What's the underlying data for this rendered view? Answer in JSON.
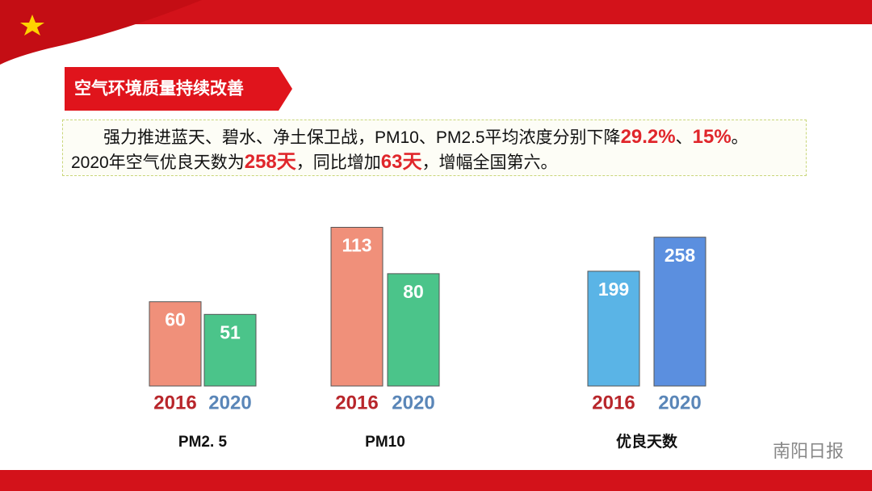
{
  "header": {
    "title": "空气环境质量持续改善"
  },
  "paragraph": {
    "lines": [
      [
        {
          "text": "强力推进蓝天、碧水、净土保卫战，PM10、PM2.5平均浓度分别下降",
          "style": "plain"
        },
        {
          "text": "29.2%",
          "style": "emphasis"
        },
        {
          "text": "、",
          "style": "plain"
        },
        {
          "text": "15%",
          "style": "emphasis"
        },
        {
          "text": "。",
          "style": "plain"
        }
      ],
      [
        {
          "text": "2020年空气优良天数为",
          "style": "plain"
        },
        {
          "text": "258天",
          "style": "emphasis"
        },
        {
          "text": "，同比增加",
          "style": "plain"
        },
        {
          "text": "63天",
          "style": "emphasis"
        },
        {
          "text": "，增幅全国第六。",
          "style": "plain"
        }
      ]
    ]
  },
  "chart_data": [
    {
      "type": "bar",
      "title": "PM2. 5",
      "categories": [
        "2016",
        "2020"
      ],
      "values": [
        60,
        51
      ],
      "colors": [
        "#f0907a",
        "#4bc48a"
      ],
      "label_colors": [
        "#b8262b",
        "#5a86b8"
      ],
      "ylim": [
        0,
        115
      ]
    },
    {
      "type": "bar",
      "title": "PM10",
      "categories": [
        "2016",
        "2020"
      ],
      "values": [
        113,
        80
      ],
      "colors": [
        "#f0907a",
        "#4bc48a"
      ],
      "label_colors": [
        "#b8262b",
        "#5a86b8"
      ],
      "ylim": [
        0,
        115
      ]
    },
    {
      "type": "bar",
      "title": "优良天数",
      "categories": [
        "2016",
        "2020"
      ],
      "values": [
        199,
        258
      ],
      "colors": [
        "#5ab4e6",
        "#5b8fdf"
      ],
      "label_colors": [
        "#b8262b",
        "#5a86b8"
      ],
      "ylim": [
        0,
        280
      ]
    }
  ],
  "watermark": "南阳日报"
}
